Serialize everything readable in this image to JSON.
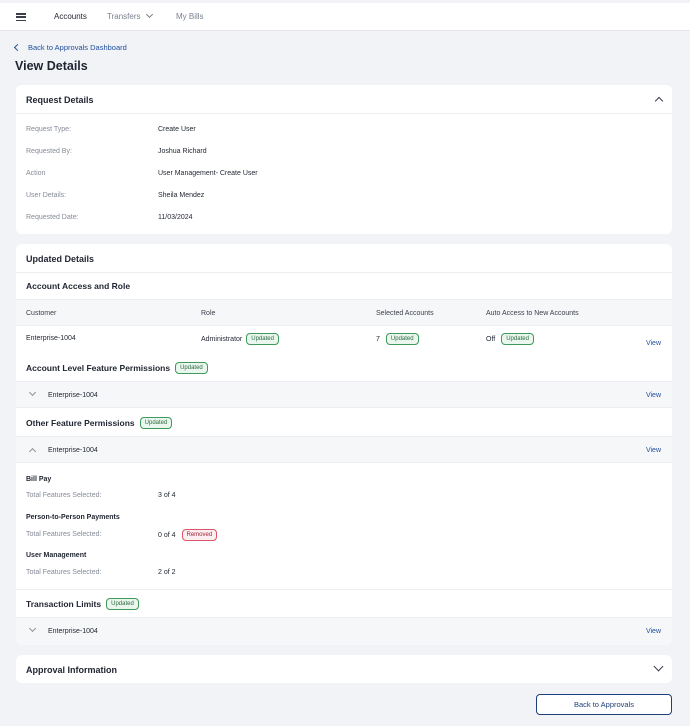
{
  "nav": {
    "items": [
      {
        "label": "Accounts"
      },
      {
        "label": "Transfers"
      },
      {
        "label": "My Bills"
      }
    ]
  },
  "back_link": "Back to Approvals Dashboard",
  "page_title": "View Details",
  "request_details": {
    "title": "Request Details",
    "rows": [
      {
        "label": "Request Type:",
        "value": "Create User"
      },
      {
        "label": "Requested By:",
        "value": "Joshua Richard"
      },
      {
        "label": "Action",
        "value": "User Management- Create User"
      },
      {
        "label": "User Details:",
        "value": "Sheila Mendez"
      },
      {
        "label": "Requested Date:",
        "value": "11/03/2024"
      }
    ]
  },
  "updated_details": {
    "title": "Updated Details",
    "account_access": {
      "title": "Account Access and Role",
      "columns": [
        "Customer",
        "Role",
        "Selected Accounts",
        "Auto Access to New Accounts"
      ],
      "row": {
        "customer": "Enterprise-1004",
        "role": "Administrator",
        "role_badge": "Updated",
        "selected_accounts": "7",
        "selected_badge": "Updated",
        "auto_access": "Off",
        "auto_badge": "Updated",
        "view": "View"
      }
    },
    "account_level": {
      "title": "Account Level Feature Permissions",
      "badge": "Updated",
      "customer": "Enterprise-1004",
      "view": "View"
    },
    "other_feature": {
      "title": "Other Feature Permissions",
      "badge": "Updated",
      "customer": "Enterprise-1004",
      "view": "View",
      "features": [
        {
          "name": "Bill Pay",
          "label": "Total Features Selected:",
          "value": "3 of 4"
        },
        {
          "name": "Person-to-Person Payments",
          "label": "Total Features Selected:",
          "value": "0 of 4",
          "badge": "Removed"
        },
        {
          "name": "User Management",
          "label": "Total Features Selected:",
          "value": "2 of 2"
        }
      ]
    },
    "transaction_limits": {
      "title": "Transaction Limits",
      "badge": "Updated",
      "customer": "Enterprise-1004",
      "view": "View"
    }
  },
  "approval_info": {
    "title": "Approval Information"
  },
  "footer": {
    "back_button": "Back to Approvals"
  },
  "colors": {
    "accent": "#1f4e9c",
    "updated_badge": "#3d9a5a",
    "removed_badge": "#d8566a",
    "background": "#f1f3f6"
  }
}
